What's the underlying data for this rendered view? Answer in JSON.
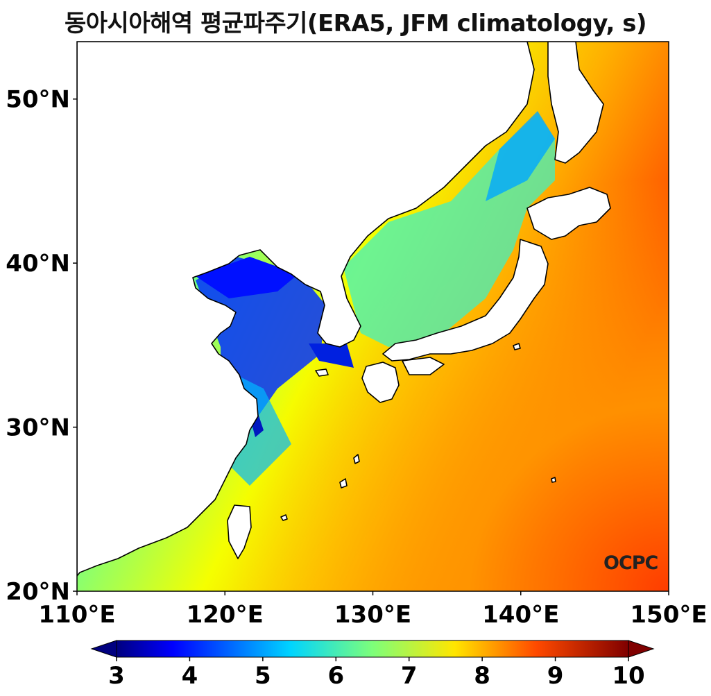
{
  "title": "동아시아해역 평균파주기(ERA5, JFM climatology, s)",
  "watermark": "OCPC",
  "map": {
    "lon_range": [
      110,
      150
    ],
    "lat_range": [
      20,
      53.5
    ],
    "lon_ticks": [
      "110°E",
      "120°E",
      "130°E",
      "140°E",
      "150°E"
    ],
    "lat_ticks": [
      "20°N",
      "30°N",
      "40°N",
      "50°N"
    ],
    "lon_tick_values": [
      110,
      120,
      130,
      140,
      150
    ],
    "lat_tick_values": [
      20,
      30,
      40,
      50
    ]
  },
  "colorbar": {
    "min": 3,
    "max": 10,
    "labels": [
      "3",
      "4",
      "5",
      "6",
      "7",
      "8",
      "9",
      "10"
    ],
    "colormap": "jet",
    "extend": "both"
  },
  "colors": {
    "land": "#ffffff",
    "coastline": "#000000"
  }
}
